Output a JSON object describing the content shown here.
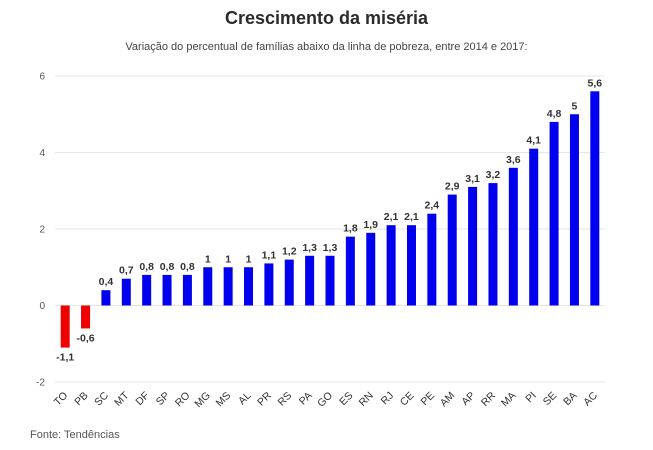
{
  "chart_data": {
    "type": "bar",
    "title": "Crescimento da miséria",
    "subtitle": "Variação do percentual de famílias abaixo da linha de pobreza, entre 2014 e 2017:",
    "source": "Fonte: Tendências",
    "categories": [
      "TO",
      "PB",
      "SC",
      "MT",
      "DF",
      "SP",
      "RO",
      "MG",
      "MS",
      "AL",
      "PR",
      "RS",
      "PA",
      "GO",
      "ES",
      "RN",
      "RJ",
      "CE",
      "PE",
      "AM",
      "AP",
      "RR",
      "MA",
      "PI",
      "SE",
      "BA",
      "AC"
    ],
    "values": [
      -1.1,
      -0.6,
      0.4,
      0.7,
      0.8,
      0.8,
      0.8,
      1,
      1,
      1,
      1.1,
      1.2,
      1.3,
      1.3,
      1.8,
      1.9,
      2.1,
      2.1,
      2.4,
      2.9,
      3.1,
      3.2,
      3.6,
      4.1,
      4.8,
      5,
      5.6
    ],
    "value_labels": [
      "-1,1",
      "-0,6",
      "0,4",
      "0,7",
      "0,8",
      "0,8",
      "0,8",
      "1",
      "1",
      "1",
      "1,1",
      "1,2",
      "1,3",
      "1,3",
      "1,8",
      "1,9",
      "2,1",
      "2,1",
      "2,4",
      "2,9",
      "3,1",
      "3,2",
      "3,6",
      "4,1",
      "4,8",
      "5",
      "5,6"
    ],
    "ylim": [
      -2,
      6
    ],
    "yticks": [
      -2,
      0,
      2,
      4,
      6
    ],
    "ytick_labels": [
      "-2",
      "0",
      "2",
      "4",
      "6"
    ],
    "grid": true,
    "colors": {
      "positive": "#0000ee",
      "negative": "#ee0000",
      "grid": "#e6e6e6"
    }
  }
}
